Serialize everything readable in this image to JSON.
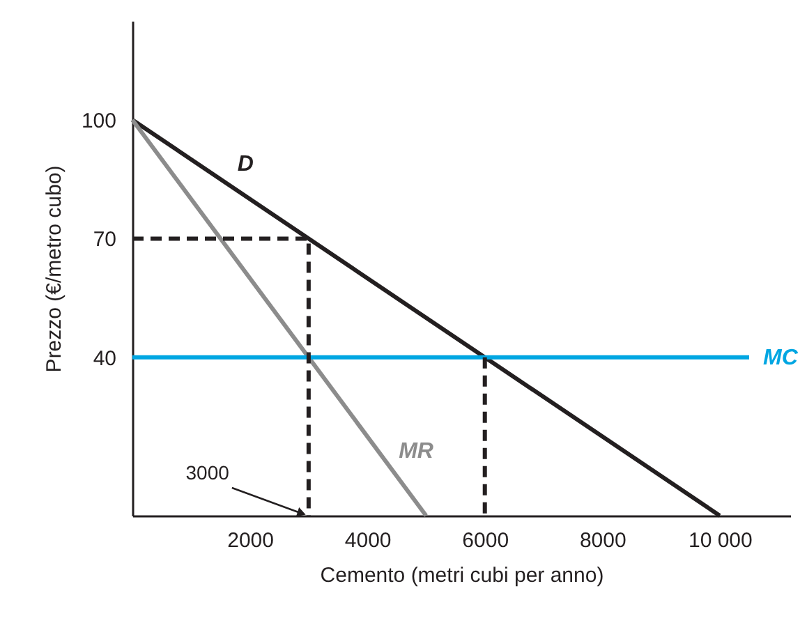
{
  "chart_data": {
    "type": "line",
    "xlabel": "Cemento (metri cubi per anno)",
    "ylabel": "Prezzo (€/metro cubo)",
    "xlim": [
      0,
      11200
    ],
    "ylim": [
      0,
      125
    ],
    "xticks": [
      2000,
      4000,
      6000,
      8000,
      {
        "value": 10000,
        "label": "10 000"
      }
    ],
    "yticks": [
      40,
      70,
      100
    ],
    "grid": false,
    "marker": "none",
    "series": [
      {
        "name": "D",
        "color": "#231f20",
        "x": [
          0,
          10000
        ],
        "values": [
          100,
          0
        ],
        "line_style": "solid"
      },
      {
        "name": "MR",
        "color": "#8c8c8c",
        "x": [
          0,
          5000
        ],
        "values": [
          100,
          0
        ],
        "line_style": "solid"
      },
      {
        "name": "MC",
        "color": "#00a6e2",
        "x": [
          0,
          10500
        ],
        "values": [
          40,
          40
        ],
        "line_style": "solid"
      },
      {
        "color": "#231f20",
        "x": [
          0,
          3000,
          3000
        ],
        "values": [
          70,
          70,
          0
        ],
        "line_style": "dashed"
      },
      {
        "color": "#231f20",
        "x": [
          6000,
          6000
        ],
        "values": [
          40,
          0
        ],
        "line_style": "dashed"
      }
    ],
    "annotations": [
      {
        "text": "3000",
        "x": 3000,
        "y": 0
      }
    ]
  }
}
